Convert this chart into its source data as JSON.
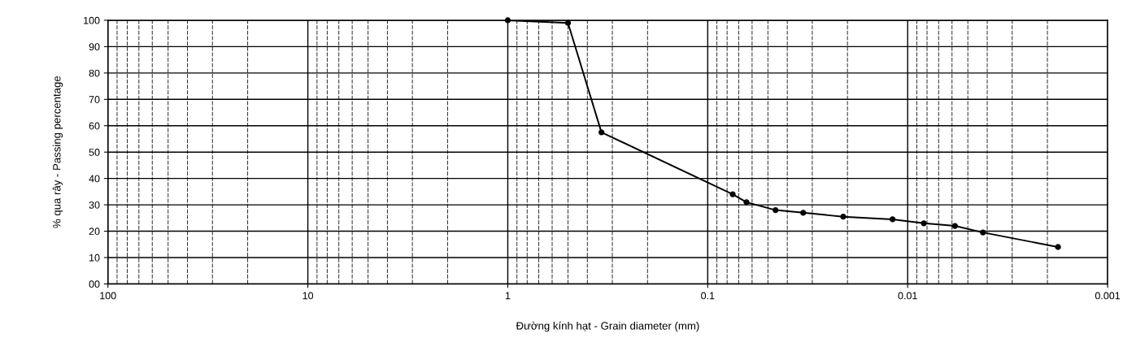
{
  "chart_data": {
    "type": "line",
    "xlabel": "Đường kính hạt - Grain diameter (mm)",
    "ylabel": "% qua rây - Passing percentage",
    "log": "x",
    "xlim": [
      100,
      0.001
    ],
    "xticks": [
      100,
      10,
      1,
      0.1,
      0.01,
      0.001
    ],
    "ylim": [
      0,
      100
    ],
    "yticks": [
      {
        "value": 0,
        "label": "00"
      },
      10,
      20,
      30,
      40,
      50,
      60,
      70,
      80,
      90,
      100
    ],
    "grid": true,
    "marker": "circle",
    "line_style": "solid",
    "legend": false,
    "series": [
      {
        "color": "#000000",
        "x": [
          1.0,
          0.5,
          0.34,
          0.075,
          0.064,
          0.0458,
          0.0333,
          0.021,
          0.0119,
          0.0083,
          0.0058,
          0.0042,
          0.00177
        ],
        "values": [
          100,
          99,
          57.5,
          34,
          31,
          28,
          27,
          25.5,
          24.5,
          23,
          22,
          19.5,
          14
        ]
      }
    ]
  }
}
